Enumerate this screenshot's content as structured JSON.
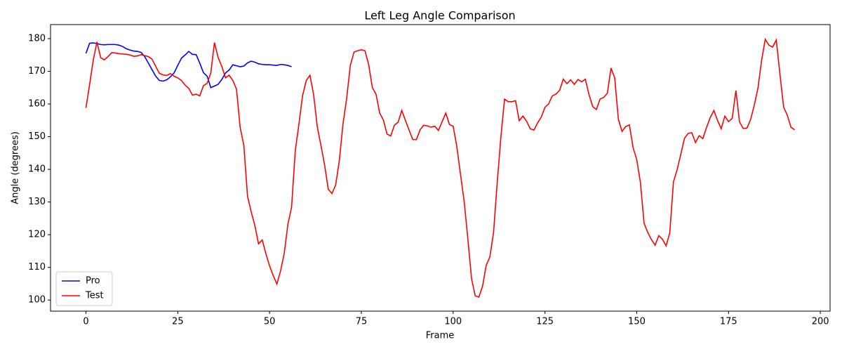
{
  "chart_data": {
    "type": "line",
    "title": "Left Leg Angle Comparison",
    "x_label": "Frame",
    "y_label": "Angle (degrees)",
    "xlim": [
      -9.65,
      202.65
    ],
    "ylim": [
      96.6,
      184.3
    ],
    "xticks": [
      0,
      25,
      50,
      75,
      100,
      125,
      150,
      175,
      200
    ],
    "yticks": [
      100,
      110,
      120,
      130,
      140,
      150,
      160,
      170,
      180
    ],
    "legend": "lower left",
    "grid": false,
    "series": [
      {
        "name": "Pro",
        "color": "#0000ff",
        "x": [
          0,
          1,
          2,
          3,
          4,
          5,
          6,
          7,
          8,
          9,
          10,
          11,
          12,
          13,
          14,
          15,
          16,
          17,
          18,
          19,
          20,
          21,
          22,
          23,
          24,
          25,
          26,
          27,
          28,
          29,
          30,
          31,
          32,
          33,
          34,
          35,
          36,
          37,
          38,
          39,
          40,
          41,
          42,
          43,
          44,
          45,
          46,
          47,
          48,
          49,
          50,
          51,
          52,
          53,
          54,
          55,
          56
        ],
        "values": [
          175.5,
          178.6,
          178.7,
          178.5,
          178.2,
          178.1,
          178.2,
          178.2,
          178.2,
          178.0,
          177.6,
          176.9,
          176.5,
          176.2,
          176.1,
          175.8,
          174.5,
          172.5,
          170.5,
          168.5,
          167.2,
          167.0,
          167.4,
          168.3,
          169.5,
          171.8,
          174.0,
          175.0,
          176.1,
          175.2,
          175.1,
          172.5,
          169.6,
          168.5,
          165.0,
          165.5,
          166.0,
          167.5,
          169.5,
          170.4,
          172.0,
          171.7,
          171.4,
          171.6,
          172.6,
          173.1,
          172.8,
          172.3,
          172.1,
          172.0,
          172.0,
          171.9,
          171.8,
          172.1,
          172.0,
          171.8,
          171.4
        ]
      },
      {
        "name": "Test",
        "color": "#ff0000",
        "x": [
          0,
          1,
          2,
          3,
          4,
          5,
          6,
          7,
          8,
          9,
          10,
          11,
          12,
          13,
          14,
          15,
          16,
          17,
          18,
          19,
          20,
          21,
          22,
          23,
          24,
          25,
          26,
          27,
          28,
          29,
          30,
          31,
          32,
          33,
          34,
          35,
          36,
          37,
          38,
          39,
          40,
          41,
          42,
          43,
          44,
          45,
          46,
          47,
          48,
          49,
          50,
          51,
          52,
          53,
          54,
          55,
          56,
          57,
          58,
          59,
          60,
          61,
          62,
          63,
          64,
          65,
          66,
          67,
          68,
          69,
          70,
          71,
          72,
          73,
          74,
          75,
          76,
          77,
          78,
          79,
          80,
          81,
          82,
          83,
          84,
          85,
          86,
          87,
          88,
          89,
          90,
          91,
          92,
          93,
          94,
          95,
          96,
          97,
          98,
          99,
          100,
          101,
          102,
          103,
          104,
          105,
          106,
          107,
          108,
          109,
          110,
          111,
          112,
          113,
          114,
          115,
          116,
          117,
          118,
          119,
          120,
          121,
          122,
          123,
          124,
          125,
          126,
          127,
          128,
          129,
          130,
          131,
          132,
          133,
          134,
          135,
          136,
          137,
          138,
          139,
          140,
          141,
          142,
          143,
          144,
          145,
          146,
          147,
          148,
          149,
          150,
          151,
          152,
          153,
          154,
          155,
          156,
          157,
          158,
          159,
          160,
          161,
          162,
          163,
          164,
          165,
          166,
          167,
          168,
          169,
          170,
          171,
          172,
          173,
          174,
          175,
          176,
          177,
          178,
          179,
          180,
          181,
          182,
          183,
          184,
          185,
          186,
          187,
          188,
          189,
          190,
          191,
          192,
          193
        ],
        "values": [
          158.8,
          166,
          173.5,
          179,
          174.2,
          173.5,
          174.5,
          175.7,
          175.6,
          175.4,
          175.3,
          175.2,
          175.0,
          174.6,
          174.7,
          175.1,
          174.8,
          174.5,
          173.7,
          171.5,
          169.4,
          168.9,
          168.7,
          169.3,
          168.5,
          168.0,
          167.2,
          165.8,
          164.8,
          162.7,
          163.0,
          162.5,
          165.6,
          166.3,
          169.5,
          178.8,
          174.2,
          171.5,
          168.0,
          168.8,
          167.2,
          164.5,
          152.8,
          147.3,
          131.8,
          127.0,
          122.8,
          117.2,
          118.4,
          114.2,
          110.5,
          107.5,
          104.9,
          108.9,
          114.3,
          123.2,
          128.4,
          145.6,
          153.9,
          162.6,
          167.2,
          168.8,
          162.9,
          153.0,
          147.3,
          141.3,
          133.9,
          132.6,
          135.2,
          142.6,
          153.9,
          161.7,
          171.8,
          175.9,
          176.3,
          176.6,
          176.3,
          172.0,
          165.0,
          163.0,
          157.2,
          155.1,
          150.8,
          150.2,
          153.5,
          154.4,
          158.0,
          155.0,
          152.0,
          149.1,
          149.1,
          152.1,
          153.5,
          153.3,
          152.9,
          153.2,
          151.9,
          154.6,
          157.2,
          153.7,
          153.2,
          147.0,
          138.5,
          130.2,
          118.8,
          106.7,
          101.3,
          100.9,
          104.2,
          110.6,
          113.2,
          120.6,
          135.9,
          149.9,
          161.5,
          160.7,
          160.7,
          161.0,
          154.9,
          156.3,
          154.7,
          152.4,
          152.0,
          154.2,
          156.0,
          159.0,
          160.0,
          162.5,
          163.0,
          164.2,
          167.6,
          166.2,
          167.4,
          166.0,
          167.5,
          166.8,
          167.6,
          162.9,
          159.2,
          158.3,
          161.5,
          162.0,
          163.3,
          171.0,
          168.0,
          155.3,
          151.6,
          153.1,
          153.6,
          146.7,
          143.0,
          136.0,
          123.5,
          120.7,
          118.5,
          116.8,
          119.7,
          118.6,
          116.6,
          120.6,
          136.2,
          139.9,
          144.6,
          149.5,
          151.0,
          151.2,
          148.2,
          150.3,
          149.4,
          152.8,
          155.8,
          158.0,
          155.0,
          152.4,
          156.3,
          154.6,
          155.6,
          164.1,
          154.5,
          152.5,
          152.6,
          155.2,
          159.6,
          164.8,
          173.3,
          179.8,
          178.0,
          177.4,
          179.6,
          169.1,
          159.0,
          156.6,
          152.9,
          152.1
        ]
      }
    ]
  }
}
